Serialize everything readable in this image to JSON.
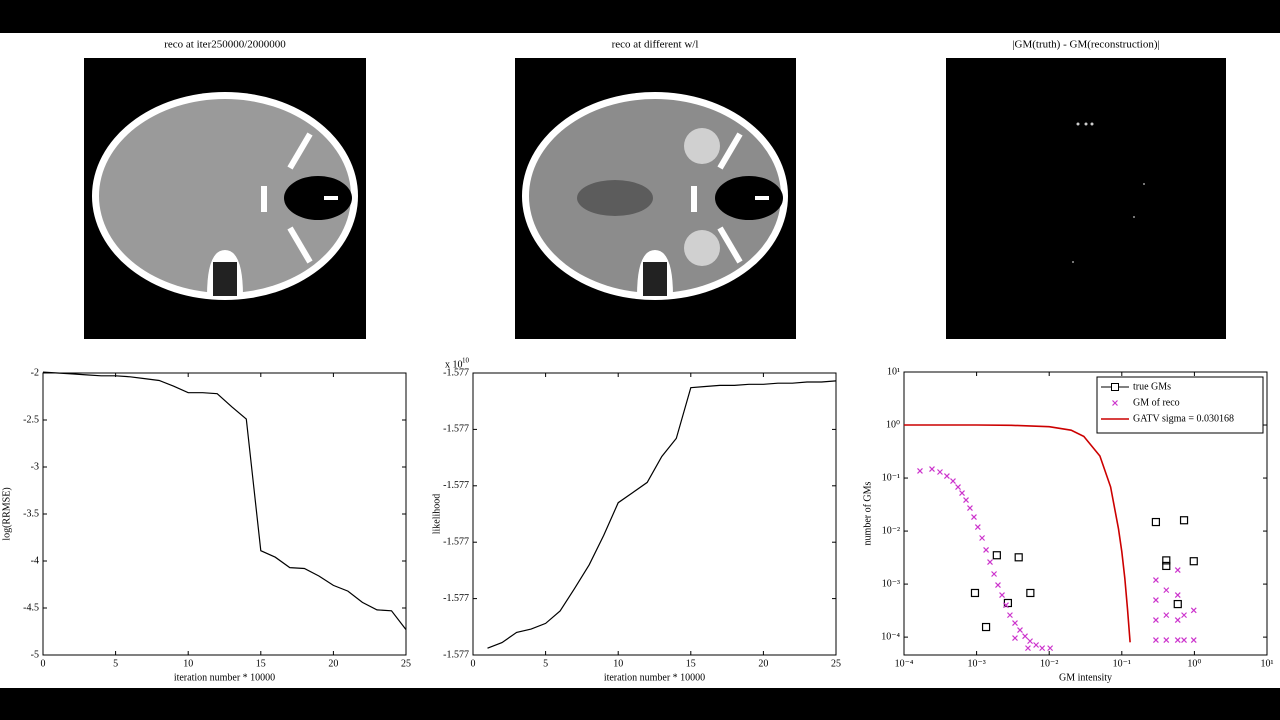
{
  "images": [
    {
      "title": "reco at iter250000/2000000"
    },
    {
      "title": "reco at different w/l"
    },
    {
      "title": "|GM(truth) - GM(reconstruction)|"
    }
  ],
  "chart_data": [
    {
      "type": "line",
      "xlabel": "iteration number * 10000",
      "ylabel": "log(RRMSE)",
      "x": [
        0,
        1,
        2,
        3,
        4,
        5,
        6,
        7,
        8,
        9,
        10,
        11,
        12,
        13,
        14,
        15,
        16,
        17,
        18,
        19,
        20,
        21,
        22,
        23,
        24,
        25
      ],
      "series": [
        {
          "color": "#000000",
          "style": "line",
          "values": [
            -1.99,
            -2.0,
            -2.01,
            -2.02,
            -2.03,
            -2.03,
            -2.04,
            -2.06,
            -2.08,
            -2.14,
            -2.21,
            -2.21,
            -2.22,
            -2.36,
            -2.49,
            -3.89,
            -3.96,
            -4.07,
            -4.08,
            -4.16,
            -4.26,
            -4.32,
            -4.44,
            -4.52,
            -4.53,
            -4.73
          ]
        }
      ],
      "xlim": [
        0,
        25
      ],
      "xticks": [
        0,
        5,
        10,
        15,
        20,
        25
      ],
      "ylim": [
        -5,
        -2
      ],
      "yticks": [
        -5,
        -4.5,
        -4,
        -3.5,
        -3,
        -2.5,
        -2
      ]
    },
    {
      "type": "line",
      "xlabel": "iteration number * 10000",
      "ylabel": "likelihood",
      "y_multiplier": "x 10",
      "y_multiplier_exponent": "10",
      "x": [
        1,
        2,
        3,
        4,
        5,
        6,
        7,
        8,
        9,
        10,
        11,
        12,
        13,
        14,
        15,
        16,
        17,
        18,
        19,
        20,
        21,
        22,
        23,
        24,
        25
      ],
      "series": [
        {
          "color": "#000000",
          "style": "line",
          "values": [
            -1.577244,
            -1.577239,
            -1.57723,
            -1.577227,
            -1.577222,
            -1.577211,
            -1.577191,
            -1.57717,
            -1.577144,
            -1.577115,
            -1.577106,
            -1.577097,
            -1.577074,
            -1.577058,
            -1.577013,
            -1.577012,
            -1.577011,
            -1.577011,
            -1.57701,
            -1.57701,
            -1.577009,
            -1.577009,
            -1.577008,
            -1.577008,
            -1.577007
          ]
        }
      ],
      "xlim": [
        0,
        25
      ],
      "xticks": [
        0,
        5,
        10,
        15,
        20,
        25
      ],
      "ylim": [
        -1.57725,
        -1.577
      ],
      "yticks": [
        {
          "value": -1.57725,
          "label": "-1.577"
        },
        {
          "value": -1.5772,
          "label": "-1.577"
        },
        {
          "value": -1.57715,
          "label": "-1.577"
        },
        {
          "value": -1.5771,
          "label": "-1.577"
        },
        {
          "value": -1.57705,
          "label": "-1.577"
        },
        {
          "value": -1.577,
          "label": "-1.577"
        }
      ]
    },
    {
      "type": "scatter",
      "xlabel": "GM intensity",
      "ylabel": "number of GMs",
      "xscale": "log",
      "yscale": "log",
      "legend": "upper right",
      "series": [
        {
          "name": "true GMs",
          "color": "#000000",
          "style": "square",
          "x": [
            0.00095,
            0.00135,
            0.0019,
            0.0027,
            0.0038,
            0.0055,
            0.295,
            0.41,
            0.41,
            0.59,
            0.72,
            0.98
          ],
          "values": [
            0.00068,
            0.000155,
            0.0035,
            0.00044,
            0.0032,
            0.00068,
            0.0148,
            0.0028,
            0.0022,
            0.00042,
            0.016,
            0.0027
          ]
        },
        {
          "name": "GM of reco",
          "color": "#cc33cc",
          "style": "x",
          "x": [
            0.000166,
            0.000243,
            0.000313,
            0.00039,
            0.000473,
            0.000555,
            0.00063,
            0.000715,
            0.00081,
            0.00092,
            0.00104,
            0.00119,
            0.00135,
            0.00153,
            0.00174,
            0.00197,
            0.00224,
            0.00254,
            0.00288,
            0.00338,
            0.00396,
            0.00465,
            0.00545,
            0.0066,
            0.008,
            0.0103,
            0.00338,
            0.0051,
            0.295,
            0.295,
            0.295,
            0.295,
            0.41,
            0.41,
            0.41,
            0.59,
            0.59,
            0.59,
            0.59,
            0.72,
            0.72,
            0.98,
            0.98
          ],
          "values": [
            0.136,
            0.148,
            0.13,
            0.109,
            0.0877,
            0.0676,
            0.0521,
            0.0385,
            0.0272,
            0.0184,
            0.0119,
            0.0074,
            0.0044,
            0.0026,
            0.00155,
            0.00096,
            0.00062,
            0.0004,
            0.00026,
            0.000184,
            0.000136,
            0.000104,
            8.4e-05,
            7.1e-05,
            6.2e-05,
            6.2e-05,
            9.6e-05,
            6.2e-05,
            0.00119,
            0.0005,
            0.00021,
            8.8e-05,
            0.00077,
            0.00026,
            8.8e-05,
            0.00184,
            0.00062,
            0.00021,
            8.8e-05,
            0.00026,
            8.8e-05,
            0.00032,
            8.8e-05
          ]
        },
        {
          "name": "GATV sigma = 0.030168",
          "color": "#cc0000",
          "style": "line",
          "x": [
            0.0001,
            0.001,
            0.003,
            0.01,
            0.02,
            0.03,
            0.05,
            0.07,
            0.09,
            0.1,
            0.11,
            0.12,
            0.13
          ],
          "values": [
            1,
            1,
            0.99,
            0.93,
            0.8,
            0.61,
            0.26,
            0.068,
            0.011,
            0.0041,
            0.0013,
            0.00034,
            8e-05
          ]
        }
      ],
      "xlim": [
        0.0001,
        10
      ],
      "xticks": [
        {
          "value": 0.0001,
          "label": "10⁻⁴"
        },
        {
          "value": 0.001,
          "label": "10⁻³"
        },
        {
          "value": 0.01,
          "label": "10⁻²"
        },
        {
          "value": 0.1,
          "label": "10⁻¹"
        },
        {
          "value": 1,
          "label": "10⁰"
        },
        {
          "value": 10,
          "label": "10¹"
        }
      ],
      "ylim": [
        4.6e-05,
        10
      ],
      "yticks": [
        {
          "value": 0.0001,
          "label": "10⁻⁴"
        },
        {
          "value": 0.001,
          "label": "10⁻³"
        },
        {
          "value": 0.01,
          "label": "10⁻²"
        },
        {
          "value": 0.1,
          "label": "10⁻¹"
        },
        {
          "value": 1,
          "label": "10⁰"
        },
        {
          "value": 10,
          "label": "10¹"
        }
      ]
    }
  ]
}
